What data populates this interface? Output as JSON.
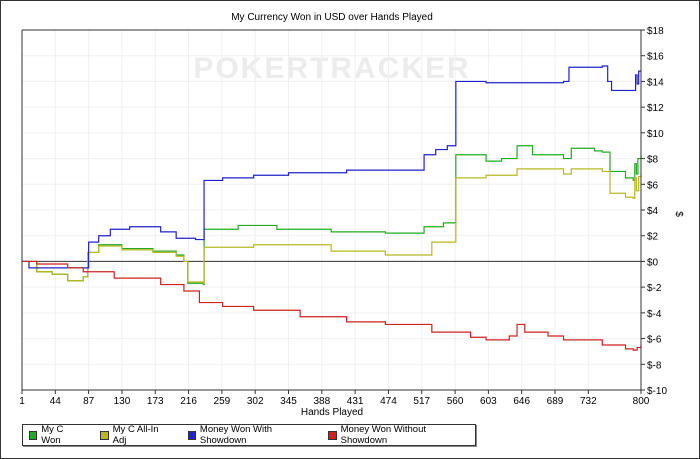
{
  "chart_data": {
    "type": "line",
    "title": "My Currency Won in USD over Hands Played",
    "xlabel": "Hands Played",
    "ylabel": "$",
    "watermark": "POKERTRACKER",
    "xlim": [
      1,
      800
    ],
    "ylim": [
      -10,
      18
    ],
    "x_ticks": [
      1,
      44,
      87,
      130,
      173,
      216,
      259,
      302,
      345,
      388,
      431,
      474,
      517,
      560,
      603,
      646,
      689,
      732,
      800
    ],
    "y_ticks": [
      18,
      16,
      14,
      12,
      10,
      8,
      6,
      4,
      2,
      0,
      -2,
      -4,
      -6,
      -8,
      -10
    ],
    "y_tick_labels": [
      "$18",
      "$16",
      "$14",
      "$12",
      "$10",
      "$8",
      "$6",
      "$4",
      "$2",
      "$0",
      "$-2",
      "$-4",
      "$-6",
      "$-8",
      "$-10"
    ],
    "legend_position": "bottom-left",
    "series": [
      {
        "name": "My C Won",
        "color": "#22aa22",
        "x": [
          1,
          20,
          40,
          60,
          80,
          86,
          100,
          130,
          170,
          200,
          210,
          215,
          235,
          236,
          280,
          330,
          400,
          470,
          520,
          545,
          561,
          600,
          620,
          640,
          660,
          700,
          710,
          740,
          750,
          760,
          780,
          790,
          792,
          794,
          796,
          800
        ],
        "y": [
          0,
          -0.8,
          -1,
          -1.5,
          -1.2,
          0.7,
          1.3,
          1,
          0.8,
          0.5,
          0,
          -1.7,
          -1.8,
          2.5,
          2.8,
          2.5,
          2.3,
          2.2,
          2.7,
          3,
          8.3,
          7.8,
          8,
          9,
          8.3,
          8,
          8.8,
          8.6,
          8.5,
          7,
          6.5,
          6.3,
          7.6,
          6.8,
          8,
          8.2
        ]
      },
      {
        "name": "My C All-In Adj",
        "color": "#b8b822",
        "x": [
          1,
          20,
          40,
          60,
          80,
          86,
          100,
          130,
          170,
          200,
          210,
          215,
          235,
          236,
          300,
          400,
          470,
          530,
          561,
          600,
          640,
          700,
          710,
          750,
          760,
          780,
          790,
          792,
          794,
          797,
          800
        ],
        "y": [
          0,
          -0.8,
          -1,
          -1.5,
          -1.2,
          0.7,
          1.2,
          0.9,
          0.7,
          0.4,
          0,
          -1.6,
          -1.7,
          1.1,
          1.3,
          0.8,
          0.5,
          1.5,
          6.5,
          6.7,
          7.2,
          6.8,
          7.2,
          7,
          5.3,
          5,
          4.9,
          6.5,
          5.5,
          6.6,
          6.8
        ]
      },
      {
        "name": "Money Won With Showdown",
        "color": "#2222cc",
        "x": [
          1,
          10,
          80,
          87,
          100,
          115,
          140,
          175,
          180,
          200,
          225,
          236,
          260,
          300,
          345,
          420,
          510,
          520,
          535,
          550,
          561,
          600,
          700,
          707,
          750,
          757,
          762,
          790,
          793,
          795,
          797,
          800
        ],
        "y": [
          0,
          -0.5,
          -0.5,
          1.5,
          2,
          2.5,
          2.7,
          2.7,
          2.3,
          1.8,
          1.7,
          6.3,
          6.5,
          6.7,
          6.9,
          7.1,
          7.1,
          8.3,
          8.7,
          9,
          14,
          13.9,
          14,
          15.1,
          15.2,
          14,
          13.3,
          13.3,
          14.5,
          13.8,
          14.8,
          14.8
        ]
      },
      {
        "name": "Money Won Without Showdown",
        "color": "#cc2222",
        "x": [
          1,
          20,
          60,
          80,
          120,
          180,
          210,
          230,
          260,
          300,
          360,
          420,
          470,
          530,
          580,
          600,
          630,
          640,
          650,
          680,
          700,
          750,
          780,
          790,
          795,
          800
        ],
        "y": [
          0,
          -0.2,
          -0.5,
          -0.8,
          -1.3,
          -1.8,
          -2.3,
          -3.2,
          -3.5,
          -3.8,
          -4.3,
          -4.7,
          -4.9,
          -5.5,
          -5.9,
          -6.1,
          -5.8,
          -4.9,
          -5.5,
          -5.8,
          -6.1,
          -6.5,
          -6.8,
          -6.9,
          -6.7,
          -6.5
        ]
      }
    ]
  }
}
